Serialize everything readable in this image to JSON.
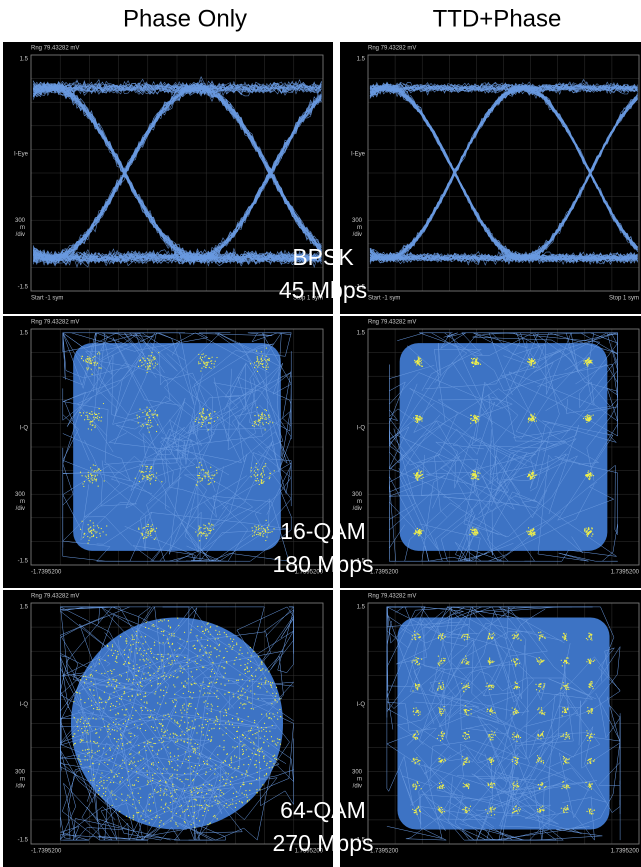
{
  "columns": [
    "Phase Only",
    "TTD+Phase"
  ],
  "rows": [
    {
      "label": [
        "BPSK",
        "45 Mbps"
      ],
      "panels": [
        {
          "range": "Rng 79.43282 mV",
          "y_top": "1.5",
          "y_name": "I-Eye",
          "y_scale": [
            "300",
            "m",
            "/div"
          ],
          "y_bottom": "-1.5",
          "x_start": "Start -1  sym",
          "x_stop": "Stop 1  sym"
        },
        {
          "range": "Rng 79.43282 mV",
          "y_top": "1.5",
          "y_name": "I-Eye",
          "y_scale": [
            "300",
            "m",
            "/div"
          ],
          "y_bottom": "-1.5",
          "x_start": "Start -1  sym",
          "x_stop": "Stop 1  sym"
        }
      ]
    },
    {
      "label": [
        "16-QAM",
        "180 Mbps"
      ],
      "panels": [
        {
          "range": "Rng 79.43282 mV",
          "y_top": "1.5",
          "y_name": "I-Q",
          "y_scale": [
            "300",
            "m",
            "/div"
          ],
          "y_bottom": "-1.5",
          "x_start": "-1.7395200",
          "x_stop": "1.7395200"
        },
        {
          "range": "Rng 79.43282 mV",
          "y_top": "1.5",
          "y_name": "I-Q",
          "y_scale": [
            "300",
            "m",
            "/div"
          ],
          "y_bottom": "-1.5",
          "x_start": "-1.7395200",
          "x_stop": "1.7395200"
        }
      ]
    },
    {
      "label": [
        "64-QAM",
        "270 Mbps"
      ],
      "panels": [
        {
          "range": "Rng 79.43282 mV",
          "y_top": "1.5",
          "y_name": "I-Q",
          "y_scale": [
            "300",
            "m",
            "/div"
          ],
          "y_bottom": "-1.5",
          "x_start": "-1.7395200",
          "x_stop": "1.7395200"
        },
        {
          "range": "Rng 79.43282 mV",
          "y_top": "1.5",
          "y_name": "I-Q",
          "y_scale": [
            "300",
            "m",
            "/div"
          ],
          "y_bottom": "-1.5",
          "x_start": "-1.7395200",
          "x_stop": "1.7395200"
        }
      ]
    }
  ]
}
